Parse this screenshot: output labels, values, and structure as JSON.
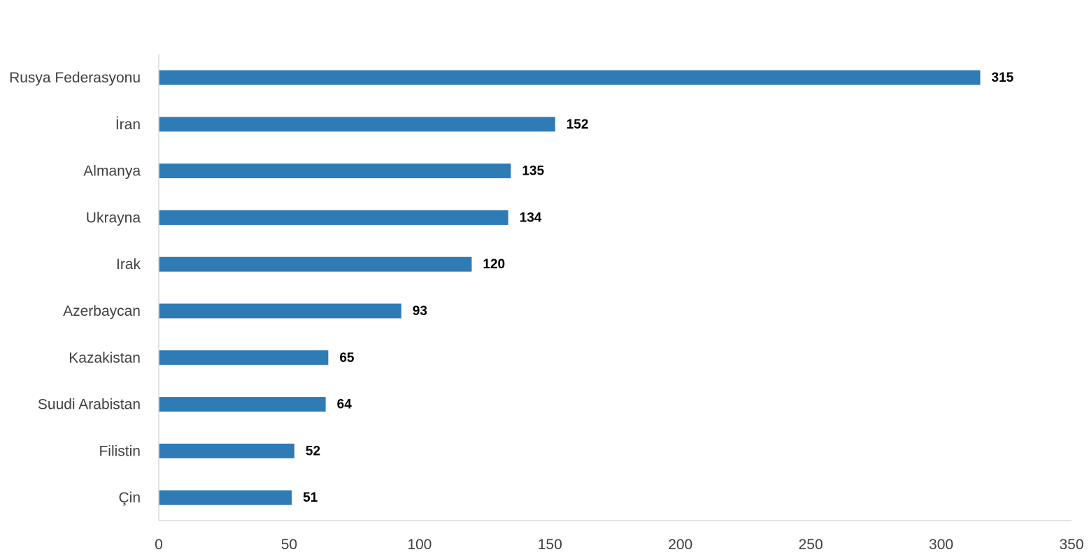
{
  "chart_data": {
    "type": "bar",
    "orientation": "horizontal",
    "title": "",
    "xlabel": "",
    "ylabel": "",
    "categories": [
      "Rusya Federasyonu",
      "İran",
      "Almanya",
      "Ukrayna",
      "Irak",
      "Azerbaycan",
      "Kazakistan",
      "Suudi Arabistan",
      "Filistin",
      "Çin"
    ],
    "values": [
      315,
      152,
      135,
      134,
      120,
      93,
      65,
      64,
      52,
      51
    ],
    "xlim": [
      0,
      350
    ],
    "xticks": [
      0,
      50,
      100,
      150,
      200,
      250,
      300,
      350
    ],
    "grid": false,
    "legend": "none",
    "bar_color": "#2E7BB6",
    "data_labels": true
  }
}
